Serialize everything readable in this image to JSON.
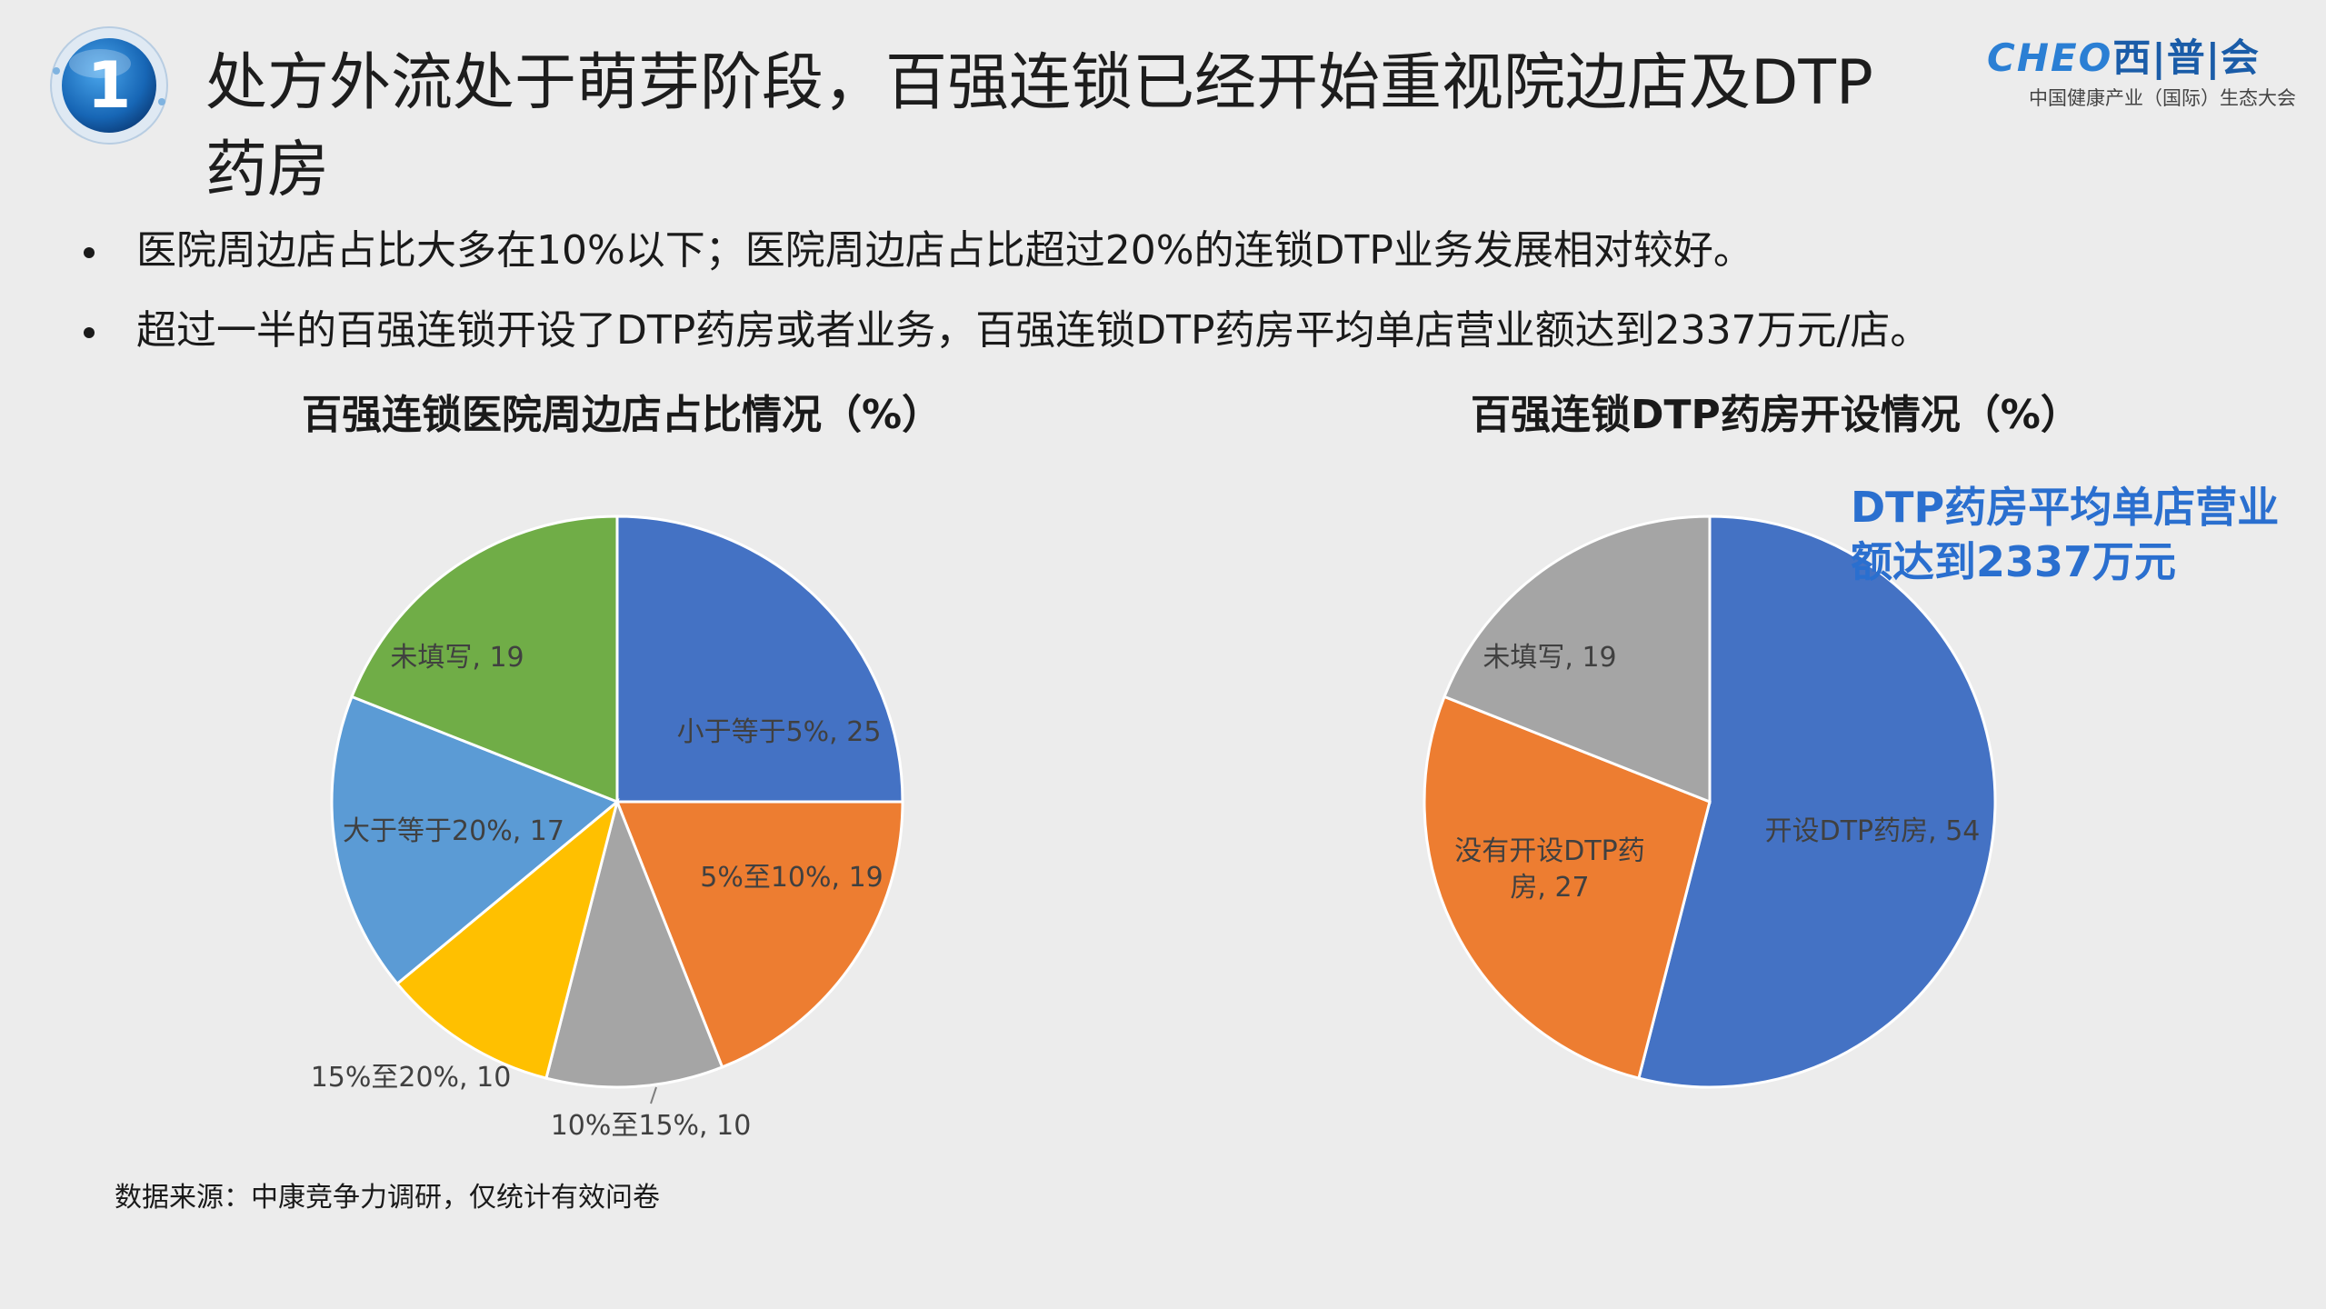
{
  "header": {
    "title": "处方外流处于萌芽阶段，百强连锁已经开始重视院边店及DTP药房",
    "badge_number": "1",
    "logo_main_latin": "CHEO",
    "logo_main_cn": "西|普|会",
    "logo_sub": "中国健康产业（国际）生态大会"
  },
  "bullets": [
    "医院周边店占比大多在10%以下；医院周边店占比超过20%的连锁DTP业务发展相对较好。",
    "超过一半的百强连锁开设了DTP药房或者业务，百强连锁DTP药房平均单店营业额达到2337万元/店。"
  ],
  "callout": "DTP药房平均单店营业额达到2337万元",
  "source": "数据来源：中康竞争力调研，仅统计有效问卷",
  "colors": {
    "blue": "#4472c4",
    "orange": "#ed7d31",
    "gray": "#a5a5a5",
    "yellow": "#ffc000",
    "lightblue": "#5b9bd5",
    "green": "#70ad47"
  },
  "chart_data": [
    {
      "type": "pie",
      "title": "百强连锁医院周边店占比情况（%）",
      "slices": [
        {
          "label": "小于等于5%, 25",
          "value": 25,
          "color": "#4472c4"
        },
        {
          "label": "5%至10%, 19",
          "value": 19,
          "color": "#ed7d31"
        },
        {
          "label": "10%至15%, 10",
          "value": 10,
          "color": "#a5a5a5"
        },
        {
          "label": "15%至20%, 10",
          "value": 10,
          "color": "#ffc000"
        },
        {
          "label": "大于等于20%, 17",
          "value": 17,
          "color": "#5b9bd5"
        },
        {
          "label": "未填写, 19",
          "value": 19,
          "color": "#70ad47"
        }
      ]
    },
    {
      "type": "pie",
      "title": "百强连锁DTP药房开设情况（%）",
      "slices": [
        {
          "label": "开设DTP药房, 54",
          "value": 54,
          "color": "#4472c4"
        },
        {
          "label": "没有开设DTP药房, 27",
          "value": 27,
          "color": "#ed7d31"
        },
        {
          "label": "未填写, 19",
          "value": 19,
          "color": "#a5a5a5"
        }
      ]
    }
  ]
}
